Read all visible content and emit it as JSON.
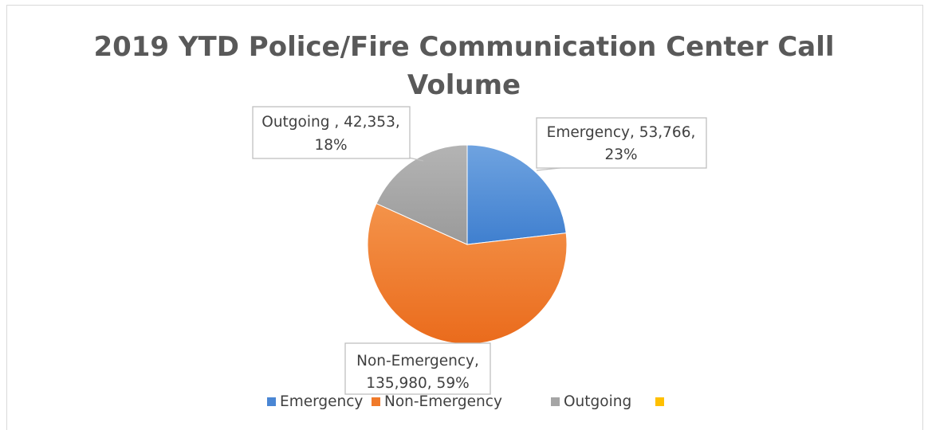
{
  "chart_data": {
    "type": "pie",
    "title": "2019 YTD Police/Fire Communication Center Call Volume",
    "title_lines": [
      "2019 YTD Police/Fire Communication Center Call",
      "Volume"
    ],
    "categories": [
      "Emergency",
      "Non-Emergency",
      "Outgoing"
    ],
    "values": [
      53766,
      135980,
      42353
    ],
    "percents": [
      "23%",
      "59%",
      "18%"
    ],
    "data_labels": [
      [
        "Emergency, 53,766,",
        "23%"
      ],
      [
        "Non-Emergency,",
        "135,980, 59%"
      ],
      [
        "Outgoing , 42,353,",
        "18%"
      ]
    ],
    "colors": [
      "#4a86d4",
      "#f07a2a",
      "#a5a5a5"
    ],
    "legend": {
      "position": "bottom",
      "entries": [
        {
          "label": "Emergency",
          "color": "#4a86d4"
        },
        {
          "label": "Non-Emergency",
          "color": "#f07a2a"
        },
        {
          "label": "Outgoing",
          "color": "#a5a5a5"
        },
        {
          "label": "",
          "color": "#ffc000"
        }
      ]
    }
  }
}
